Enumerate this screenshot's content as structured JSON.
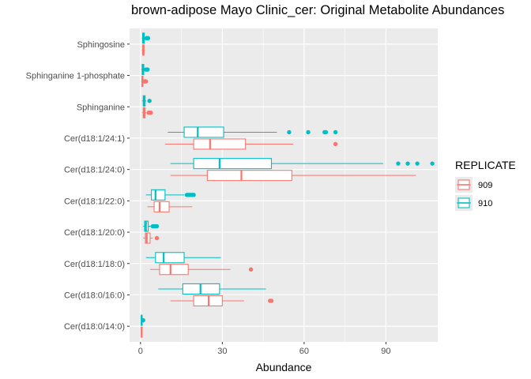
{
  "chart_data": {
    "type": "boxplot",
    "orientation": "horizontal",
    "title": "brown-adipose Mayo Clinic_cer: Original Metabolite Abundances",
    "xlabel": "Abundance",
    "ylabel": "",
    "xlim": [
      -4,
      109
    ],
    "xticks": [
      0,
      30,
      60,
      90
    ],
    "grid": true,
    "legend": {
      "title": "REPLICATE",
      "position": "right"
    },
    "colors": {
      "909": "#F8766D",
      "910": "#00BFC4",
      "panel": "#EBEBEB",
      "grid": "#FFFFFF"
    },
    "categories": [
      "Sphingosine",
      "Sphinganine 1-phosphate",
      "Sphinganine",
      "Cer(d18:1/24:1)",
      "Cer(d18:1/24:0)",
      "Cer(d18:1/22:0)",
      "Cer(d18:1/20:0)",
      "Cer(d18:1/18:0)",
      "Cer(d18:0/16:0)",
      "Cer(d18:0/14:0)"
    ],
    "series": [
      {
        "name": "909",
        "boxes": [
          {
            "min": 0.5,
            "q1": 0.8,
            "median": 1.0,
            "q3": 1.3,
            "max": 1.6,
            "outliers": []
          },
          {
            "min": 0.3,
            "q1": 0.5,
            "median": 0.7,
            "q3": 0.9,
            "max": 1.2,
            "outliers": [
              1.5,
              1.8,
              2.0
            ]
          },
          {
            "min": 0.6,
            "q1": 1.0,
            "median": 1.3,
            "q3": 1.7,
            "max": 2.1,
            "outliers": [
              3.0,
              3.5,
              3.8
            ]
          },
          {
            "min": 9,
            "q1": 19.5,
            "median": 25.5,
            "q3": 38.5,
            "max": 56,
            "outliers": [
              71.5
            ]
          },
          {
            "min": 11,
            "q1": 24.5,
            "median": 37,
            "q3": 55.5,
            "max": 101,
            "outliers": []
          },
          {
            "min": 2.5,
            "q1": 5,
            "median": 7,
            "q3": 10.5,
            "max": 19,
            "outliers": []
          },
          {
            "min": 1,
            "q1": 1.8,
            "median": 2.3,
            "q3": 3.5,
            "max": 4.5,
            "outliers": [
              6
            ]
          },
          {
            "min": 3.5,
            "q1": 7,
            "median": 11,
            "q3": 17.5,
            "max": 33,
            "outliers": [
              40.5
            ]
          },
          {
            "min": 11,
            "q1": 19.5,
            "median": 25,
            "q3": 30,
            "max": 38,
            "outliers": [
              47.5,
              48
            ]
          },
          {
            "min": 0.2,
            "q1": 0.3,
            "median": 0.4,
            "q3": 0.6,
            "max": 0.8,
            "outliers": []
          }
        ]
      },
      {
        "name": "910",
        "boxes": [
          {
            "min": 0.5,
            "q1": 0.8,
            "median": 1.1,
            "q3": 1.4,
            "max": 1.7,
            "outliers": [
              2.2,
              2.5,
              2.8
            ]
          },
          {
            "min": 0.3,
            "q1": 0.6,
            "median": 0.9,
            "q3": 1.2,
            "max": 1.6,
            "outliers": [
              2.0,
              2.3,
              2.6
            ]
          },
          {
            "min": 0.6,
            "q1": 1.0,
            "median": 1.3,
            "q3": 1.7,
            "max": 2.1,
            "outliers": [
              3.3
            ]
          },
          {
            "min": 10,
            "q1": 16,
            "median": 21,
            "q3": 30.5,
            "max": 50,
            "outliers": [
              54.5,
              61.5,
              67.5,
              68,
              71.5
            ]
          },
          {
            "min": 11,
            "q1": 19.5,
            "median": 29,
            "q3": 48,
            "max": 89,
            "outliers": [
              94.5,
              98,
              101.5,
              107
            ]
          },
          {
            "min": 2,
            "q1": 4,
            "median": 5.5,
            "q3": 9,
            "max": 16,
            "outliers": [
              17,
              17.5,
              18,
              18.5,
              19,
              19.5
            ]
          },
          {
            "min": 1,
            "q1": 1.5,
            "median": 2,
            "q3": 2.8,
            "max": 3.8,
            "outliers": [
              4.5,
              5,
              5.5,
              6
            ]
          },
          {
            "min": 2,
            "q1": 5.5,
            "median": 8.5,
            "q3": 16,
            "max": 29.5,
            "outliers": []
          },
          {
            "min": 6.5,
            "q1": 15.5,
            "median": 22,
            "q3": 29,
            "max": 46,
            "outliers": []
          },
          {
            "min": 0.2,
            "q1": 0.3,
            "median": 0.4,
            "q3": 0.6,
            "max": 0.8,
            "outliers": [
              0.9,
              1.0
            ]
          }
        ]
      }
    ]
  }
}
